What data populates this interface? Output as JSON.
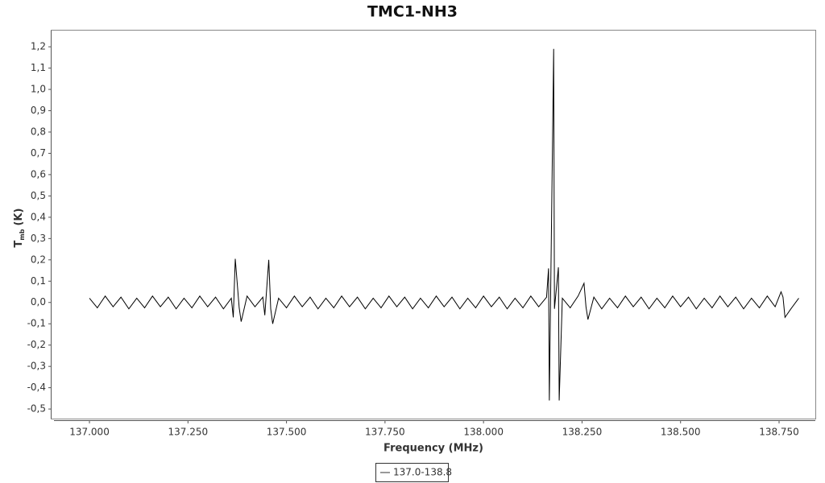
{
  "chart_data": {
    "type": "line",
    "title": "TMC1-NH3",
    "xlabel": "Frequency (MHz)",
    "ylabel": {
      "main": "T",
      "sub": "mb",
      "unit": "(K)"
    },
    "xlim": [
      136.91,
      138.842
    ],
    "ylim": [
      -0.545,
      1.276
    ],
    "xticks": [
      {
        "value": 137.0,
        "label": "137.000"
      },
      {
        "value": 137.25,
        "label": "137.250"
      },
      {
        "value": 137.5,
        "label": "137.500"
      },
      {
        "value": 137.75,
        "label": "137.750"
      },
      {
        "value": 138.0,
        "label": "138.000"
      },
      {
        "value": 138.25,
        "label": "138.250"
      },
      {
        "value": 138.5,
        "label": "138.500"
      },
      {
        "value": 138.75,
        "label": "138.750"
      }
    ],
    "yticks": [
      {
        "value": -0.5,
        "label": "-0,5"
      },
      {
        "value": -0.4,
        "label": "-0,4"
      },
      {
        "value": -0.3,
        "label": "-0,3"
      },
      {
        "value": -0.2,
        "label": "-0,2"
      },
      {
        "value": -0.1,
        "label": "-0,1"
      },
      {
        "value": 0,
        "label": "0,0"
      },
      {
        "value": 0.1,
        "label": "0,1"
      },
      {
        "value": 0.2,
        "label": "0,2"
      },
      {
        "value": 0.3,
        "label": "0,3"
      },
      {
        "value": 0.4,
        "label": "0,4"
      },
      {
        "value": 0.5,
        "label": "0,5"
      },
      {
        "value": 0.6,
        "label": "0,6"
      },
      {
        "value": 0.7,
        "label": "0,7"
      },
      {
        "value": 0.8,
        "label": "0,8"
      },
      {
        "value": 0.9,
        "label": "0,9"
      },
      {
        "value": 1.0,
        "label": "1,0"
      },
      {
        "value": 1.1,
        "label": "1,1"
      },
      {
        "value": 1.2,
        "label": "1,2"
      }
    ],
    "grid": false,
    "legend": "bottom",
    "x": [
      137.0,
      137.02,
      137.04,
      137.06,
      137.08,
      137.1,
      137.12,
      137.14,
      137.16,
      137.18,
      137.2,
      137.22,
      137.24,
      137.26,
      137.28,
      137.3,
      137.32,
      137.34,
      137.36,
      137.365,
      137.37,
      137.38,
      137.385,
      137.4,
      137.42,
      137.44,
      137.445,
      137.455,
      137.46,
      137.465,
      137.48,
      137.5,
      137.52,
      137.54,
      137.56,
      137.58,
      137.6,
      137.62,
      137.64,
      137.66,
      137.68,
      137.7,
      137.72,
      137.74,
      137.76,
      137.78,
      137.8,
      137.82,
      137.84,
      137.86,
      137.88,
      137.9,
      137.92,
      137.94,
      137.96,
      137.98,
      138.0,
      138.02,
      138.04,
      138.06,
      138.08,
      138.1,
      138.12,
      138.14,
      138.16,
      138.165,
      138.167,
      138.178,
      138.18,
      138.19,
      138.192,
      138.2,
      138.22,
      138.24,
      138.255,
      138.26,
      138.265,
      138.28,
      138.3,
      138.32,
      138.34,
      138.36,
      138.38,
      138.4,
      138.42,
      138.44,
      138.46,
      138.48,
      138.5,
      138.52,
      138.54,
      138.56,
      138.58,
      138.6,
      138.62,
      138.64,
      138.66,
      138.68,
      138.7,
      138.72,
      138.74,
      138.755,
      138.76,
      138.765,
      138.78,
      138.8
    ],
    "series": [
      {
        "name": "137.0-138.8",
        "color": "#000000",
        "values": [
          0.02,
          -0.025,
          0.03,
          -0.02,
          0.025,
          -0.03,
          0.02,
          -0.025,
          0.03,
          -0.02,
          0.025,
          -0.03,
          0.02,
          -0.025,
          0.03,
          -0.02,
          0.025,
          -0.03,
          0.02,
          -0.07,
          0.205,
          -0.025,
          -0.09,
          0.03,
          -0.02,
          0.025,
          -0.06,
          0.2,
          -0.03,
          -0.1,
          0.02,
          -0.025,
          0.03,
          -0.02,
          0.025,
          -0.03,
          0.02,
          -0.025,
          0.03,
          -0.02,
          0.025,
          -0.03,
          0.02,
          -0.025,
          0.03,
          -0.02,
          0.025,
          -0.03,
          0.02,
          -0.025,
          0.03,
          -0.02,
          0.025,
          -0.03,
          0.02,
          -0.025,
          0.03,
          -0.02,
          0.025,
          -0.03,
          0.02,
          -0.025,
          0.03,
          -0.02,
          0.025,
          0.16,
          -0.46,
          1.19,
          -0.03,
          0.165,
          -0.46,
          0.02,
          -0.025,
          0.03,
          0.09,
          -0.02,
          -0.08,
          0.025,
          -0.03,
          0.02,
          -0.025,
          0.03,
          -0.02,
          0.025,
          -0.03,
          0.02,
          -0.025,
          0.03,
          -0.02,
          0.025,
          -0.03,
          0.02,
          -0.025,
          0.03,
          -0.02,
          0.025,
          -0.03,
          0.02,
          -0.025,
          0.03,
          -0.02,
          0.05,
          0.025,
          -0.07,
          -0.03,
          0.02
        ]
      }
    ]
  }
}
